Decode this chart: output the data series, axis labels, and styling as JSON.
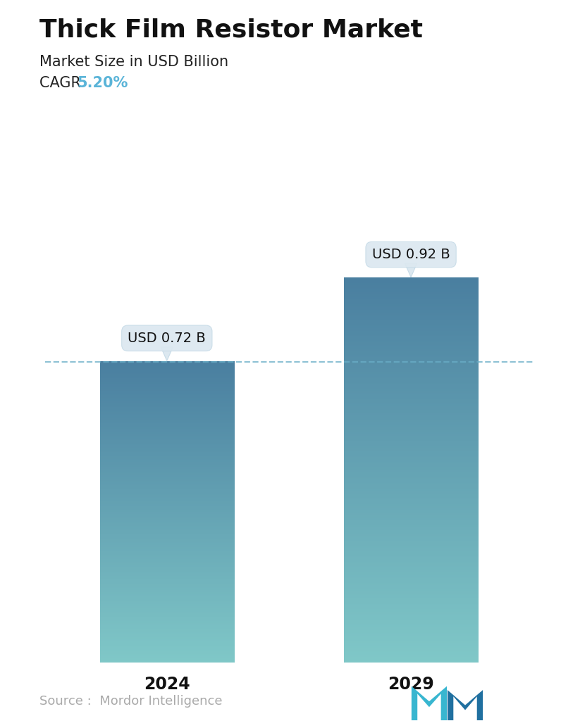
{
  "title": "Thick Film Resistor Market",
  "subtitle": "Market Size in USD Billion",
  "cagr_label": "CAGR ",
  "cagr_value": "5.20%",
  "cagr_color": "#5ab4d8",
  "categories": [
    "2024",
    "2029"
  ],
  "values": [
    0.72,
    0.92
  ],
  "bar_labels": [
    "USD 0.72 B",
    "USD 0.92 B"
  ],
  "bar_top_color": "#4a7fa0",
  "bar_bottom_color": "#80c8c8",
  "dashed_line_color": "#6aaec8",
  "dashed_line_y": 0.72,
  "source_text": "Source :  Mordor Intelligence",
  "source_color": "#aaaaaa",
  "bg_color": "#ffffff",
  "title_fontsize": 26,
  "subtitle_fontsize": 15,
  "cagr_fontsize": 15,
  "bar_label_fontsize": 14,
  "tick_fontsize": 17,
  "source_fontsize": 13,
  "ylim": [
    0,
    1.08
  ],
  "bar_width": 0.55,
  "positions": [
    0,
    1
  ]
}
